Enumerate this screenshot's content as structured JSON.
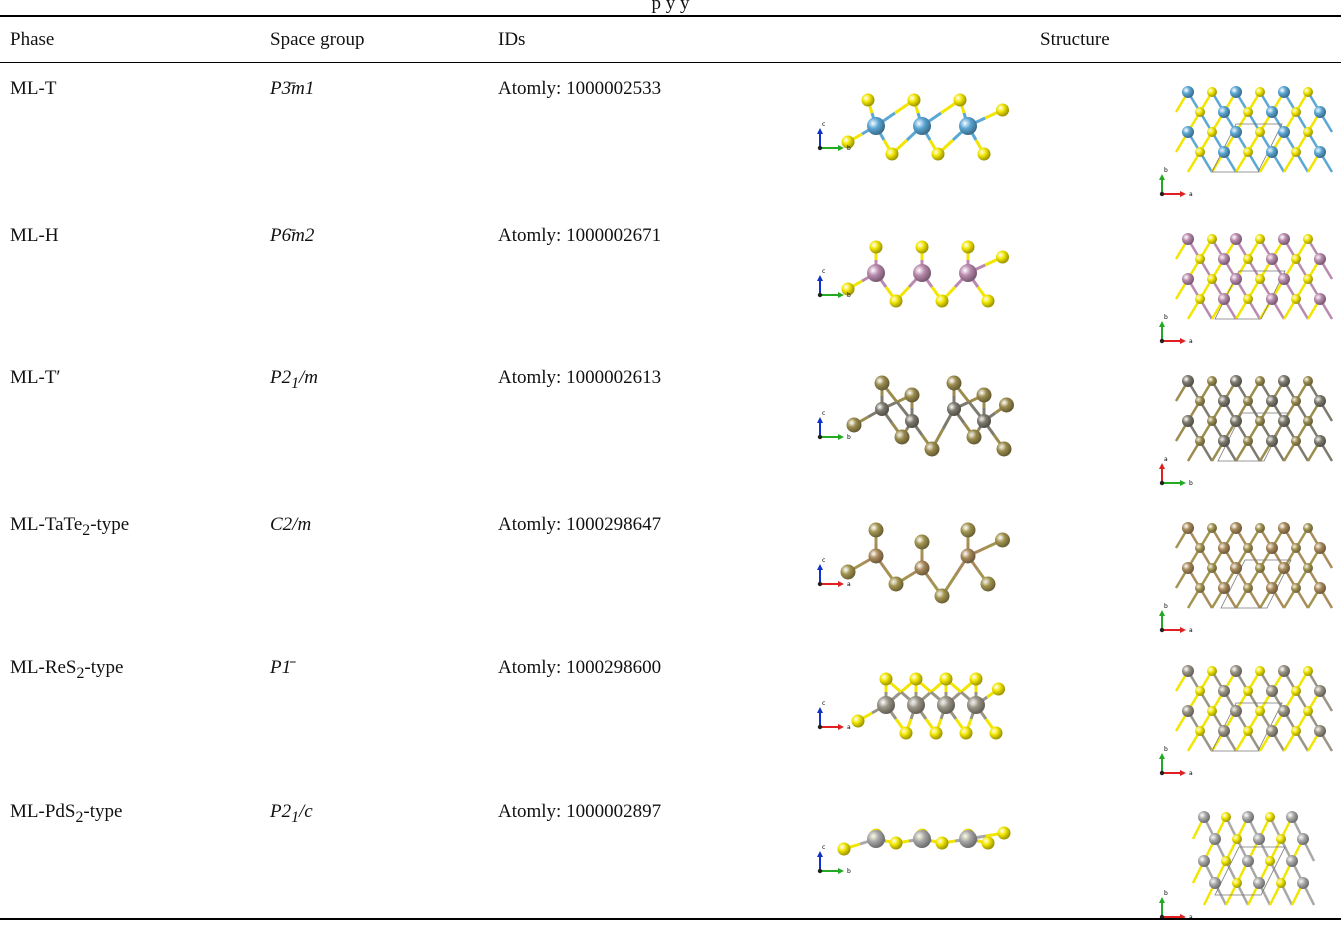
{
  "table": {
    "caption_fragment": "p                                                   y                                                                                   y",
    "headers": {
      "phase": "Phase",
      "space_group": "Space group",
      "ids": "IDs",
      "structure": "Structure"
    },
    "rows": [
      {
        "phase": "ML-T",
        "space_group": "P3̄m1",
        "id": "Atomly: 1000002533",
        "side_axes": [
          "c",
          "b"
        ],
        "top_axes": [
          "b",
          "a"
        ],
        "metal_color": "#5ba7d6",
        "chalcogen_color": "#f2e600"
      },
      {
        "phase": "ML-H",
        "space_group": "P6̄m2",
        "id": "Atomly: 1000002671",
        "side_axes": [
          "c",
          "b"
        ],
        "top_axes": [
          "b",
          "a"
        ],
        "metal_color": "#b98aae",
        "chalcogen_color": "#f2e600"
      },
      {
        "phase": "ML-T′",
        "space_group": "P21/m",
        "id": "Atomly: 1000002613",
        "side_axes": [
          "c",
          "b"
        ],
        "top_axes": [
          "a",
          "b"
        ],
        "metal_color": "#7d7a6e",
        "chalcogen_color": "#9b8c4e"
      },
      {
        "phase": "ML-TaTe2-type",
        "space_group": "C2/m",
        "id": "Atomly: 1000298647",
        "side_axes": [
          "c",
          "a"
        ],
        "top_axes": [
          "b",
          "a"
        ],
        "metal_color": "#a98a5a",
        "chalcogen_color": "#a39550"
      },
      {
        "phase": "ML-ReS2-type",
        "space_group": "P1̄",
        "id": "Atomly: 1000298600",
        "side_axes": [
          "c",
          "a"
        ],
        "top_axes": [
          "b",
          "a"
        ],
        "metal_color": "#9a9486",
        "chalcogen_color": "#f2e600"
      },
      {
        "phase": "ML-PdS2-type",
        "space_group": "P21/c",
        "id": "Atomly: 1000002897",
        "side_axes": [
          "c",
          "b"
        ],
        "top_axes": [
          "b",
          "a"
        ],
        "metal_color": "#a8a8a8",
        "chalcogen_color": "#f2e600"
      }
    ]
  }
}
